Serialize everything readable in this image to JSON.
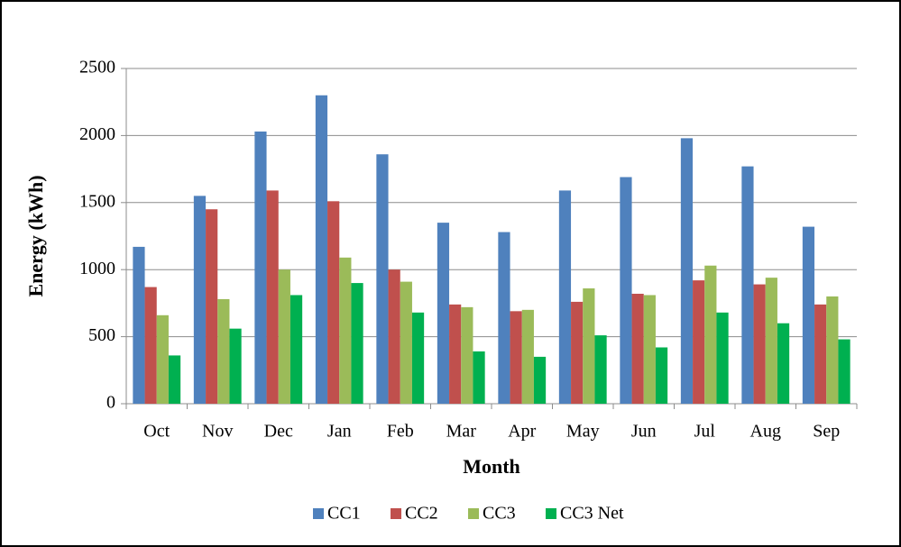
{
  "chart_data": {
    "type": "bar",
    "x_label": "Month",
    "y_label": "Energy (kWh)",
    "categories": [
      "Oct",
      "Nov",
      "Dec",
      "Jan",
      "Feb",
      "Mar",
      "Apr",
      "May",
      "Jun",
      "Jul",
      "Aug",
      "Sep"
    ],
    "series": [
      {
        "name": "CC1",
        "color": "#4f81bd",
        "values": [
          1170,
          1550,
          2030,
          2300,
          1860,
          1350,
          1280,
          1590,
          1690,
          1980,
          1770,
          1320
        ]
      },
      {
        "name": "CC2",
        "color": "#c0504d",
        "values": [
          870,
          1450,
          1590,
          1510,
          1000,
          740,
          690,
          760,
          820,
          920,
          890,
          740
        ]
      },
      {
        "name": "CC3",
        "color": "#9bbb59",
        "values": [
          660,
          780,
          1000,
          1090,
          910,
          720,
          700,
          860,
          810,
          1030,
          940,
          800
        ]
      },
      {
        "name": "CC3 Net",
        "color": "#00b050",
        "values": [
          360,
          560,
          810,
          900,
          680,
          390,
          350,
          510,
          420,
          680,
          600,
          480
        ]
      }
    ],
    "ylim": [
      0,
      2500
    ],
    "yticks": [
      0,
      500,
      1000,
      1500,
      2000,
      2500
    ],
    "grid": true,
    "legend": "bottom"
  }
}
